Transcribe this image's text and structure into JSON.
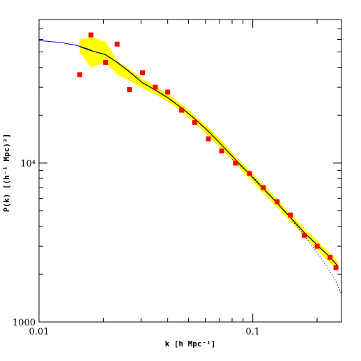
{
  "chart_data": {
    "type": "scatter",
    "title": "",
    "xlabel": "k [h Mpc⁻¹]",
    "ylabel": "P(k) [(h⁻¹ Mpc)³]",
    "xscale": "log",
    "yscale": "log",
    "xlim": [
      0.01,
      0.26
    ],
    "ylim": [
      1000,
      80000
    ],
    "x_tick_labels": [
      {
        "value": 0.01,
        "label": "0.01"
      },
      {
        "value": 0.1,
        "label": "0.1"
      }
    ],
    "y_tick_labels": [
      {
        "value": 1000,
        "label": "1000"
      },
      {
        "value": 10000,
        "label": "10⁴"
      }
    ],
    "grid": false,
    "legend": "none",
    "colors": {
      "points": "#ff0000",
      "band": "#ffff00",
      "model_curve": "#000000",
      "linear_curve": "#0000ff",
      "axes": "#000000"
    },
    "series": [
      {
        "type": "scatter",
        "x": [
          0.0155,
          0.0175,
          0.0205,
          0.0232,
          0.0265,
          0.0305,
          0.035,
          0.04,
          0.0465,
          0.0535,
          0.062,
          0.0715,
          0.083,
          0.0965,
          0.112,
          0.13,
          0.15,
          0.174,
          0.2,
          0.23,
          0.245
        ],
        "y": [
          36000,
          64000,
          43000,
          56000,
          29000,
          37000,
          30000,
          28000,
          21500,
          18000,
          14200,
          11900,
          10000,
          8600,
          7000,
          5700,
          4700,
          3500,
          3000,
          2550,
          2200
        ]
      },
      {
        "type": "band",
        "x": [
          0.0155,
          0.0175,
          0.0205,
          0.0232,
          0.0265,
          0.0305,
          0.035,
          0.04,
          0.0465,
          0.0535,
          0.062,
          0.0715,
          0.083,
          0.0965,
          0.112,
          0.13,
          0.15,
          0.174,
          0.2,
          0.23,
          0.25
        ],
        "upper": [
          60000,
          62000,
          58000,
          44000,
          39000,
          34000,
          30500,
          27200,
          23500,
          20000,
          16600,
          13700,
          11100,
          9000,
          7300,
          5950,
          4800,
          3900,
          3250,
          2700,
          2400
        ],
        "lower": [
          50000,
          40000,
          43000,
          36000,
          33000,
          29500,
          27000,
          24300,
          21000,
          17800,
          14800,
          12200,
          9900,
          8000,
          6450,
          5250,
          4300,
          3450,
          2850,
          2350,
          2100
        ]
      },
      {
        "type": "line",
        "style": "solid",
        "color": "#000000",
        "x": [
          0.0155,
          0.0175,
          0.0205,
          0.0232,
          0.0265,
          0.0305,
          0.035,
          0.04,
          0.0465,
          0.0535,
          0.062,
          0.0715,
          0.083,
          0.0965,
          0.112,
          0.13,
          0.15,
          0.174,
          0.2,
          0.23,
          0.25
        ],
        "y": [
          54000,
          51000,
          48000,
          43000,
          37500,
          32000,
          28800,
          25800,
          22200,
          19000,
          15800,
          13000,
          10500,
          8500,
          6900,
          5600,
          4550,
          3650,
          3050,
          2550,
          2250
        ]
      },
      {
        "type": "line",
        "style": "solid",
        "color": "#0000ff",
        "x": [
          0.01,
          0.0125,
          0.015,
          0.0175
        ],
        "y": [
          59000,
          57500,
          55000,
          51500
        ]
      },
      {
        "type": "line",
        "style": "dotted",
        "color": "#0000ff",
        "x": [
          0.08,
          0.1,
          0.12,
          0.15,
          0.18,
          0.21,
          0.24,
          0.26
        ],
        "y": [
          10600,
          8200,
          6300,
          4500,
          3300,
          2500,
          1900,
          1500
        ]
      }
    ]
  }
}
